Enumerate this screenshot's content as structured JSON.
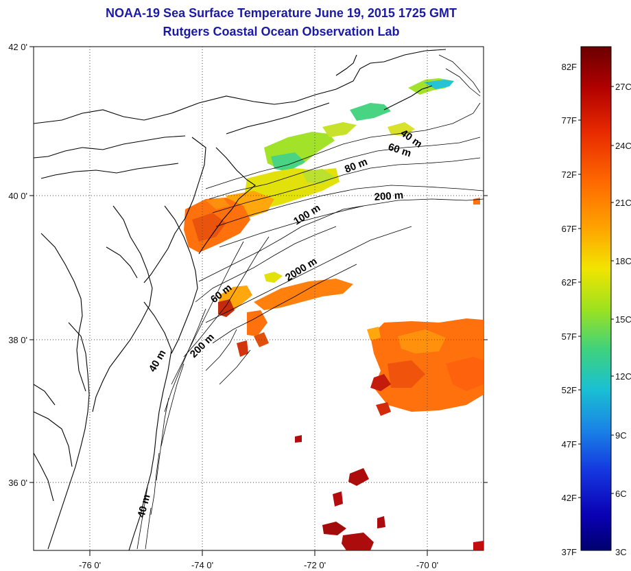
{
  "title_line1": "NOAA-19 Sea Surface Temperature June 19, 2015 1725 GMT",
  "title_line2": "Rutgers Coastal Ocean Observation Lab",
  "lat_labels": [
    "42 0'",
    "40 0'",
    "38 0'",
    "36 0'"
  ],
  "lon_labels": [
    "-76 0'",
    "-74 0'",
    "-72 0'",
    "-70 0'"
  ],
  "contour_labels": [
    "40 m",
    "60 m",
    "80 m",
    "200 m",
    "100 m",
    "2000 m",
    "60 m",
    "200 m",
    "40 m",
    "40 m"
  ],
  "colorbar": {
    "fahrenheit": [
      "82F",
      "77F",
      "72F",
      "67F",
      "62F",
      "57F",
      "52F",
      "47F",
      "42F",
      "37F"
    ],
    "celsius": [
      "27C",
      "24C",
      "21C",
      "18C",
      "15C",
      "12C",
      "9C",
      "6C",
      "3C"
    ],
    "colors": [
      "#6b0000",
      "#b00000",
      "#e82a00",
      "#ff6a00",
      "#ffa300",
      "#f2e400",
      "#9ee21e",
      "#3fd27c",
      "#1ac0d2",
      "#1a84e6",
      "#1438e0",
      "#0a00b4",
      "#00006e"
    ]
  },
  "colors": {
    "title": "#1a1aa6",
    "land_line": "#000000",
    "grid": "#555555"
  }
}
